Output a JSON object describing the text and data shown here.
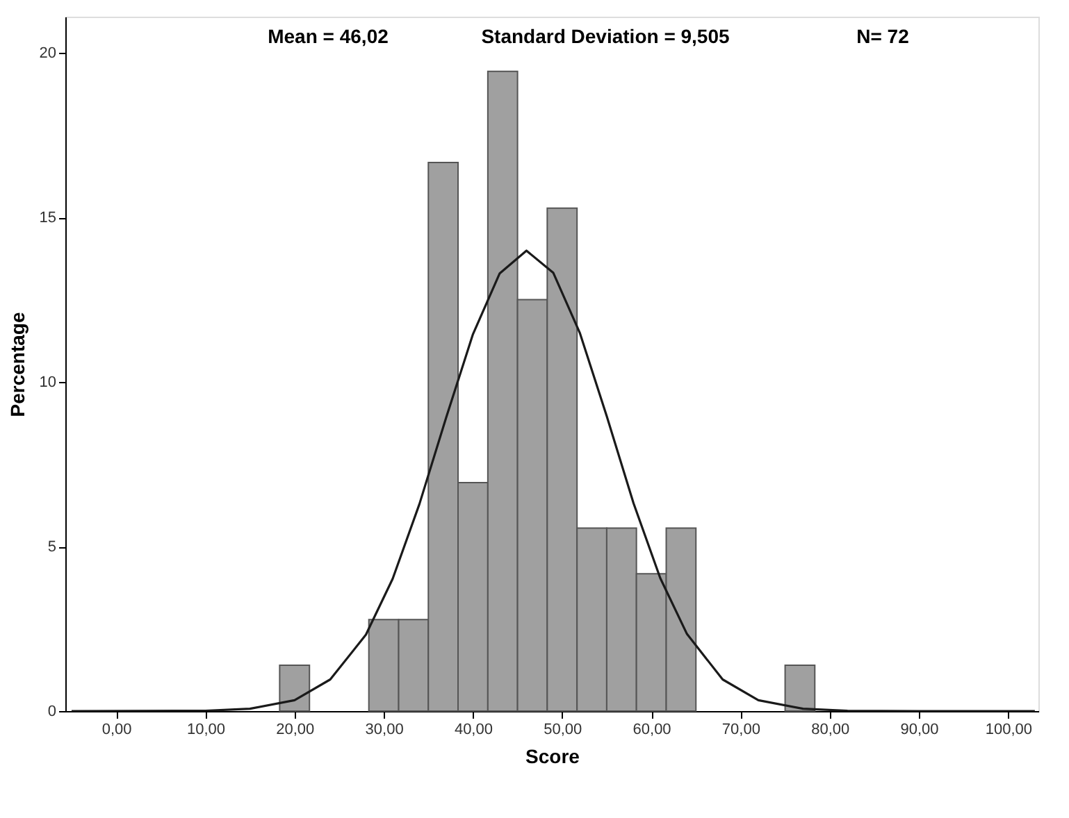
{
  "chart_data": {
    "type": "histogram",
    "xlabel": "Score",
    "ylabel": "Percentage",
    "annotations": [
      "Mean = 46,02",
      "Standard Deviation = 9,505",
      "N= 72"
    ],
    "bins": [
      18.33,
      21.67,
      25,
      28.33,
      31.67,
      35,
      38.33,
      41.67,
      45,
      48.33,
      51.67,
      55,
      58.33,
      61.67,
      65,
      68.33,
      71.67,
      75,
      78.33
    ],
    "values": [
      1.39,
      0,
      0,
      2.78,
      2.78,
      16.67,
      6.94,
      19.44,
      12.5,
      15.28,
      5.56,
      5.56,
      4.17,
      5.56,
      0,
      0,
      0,
      1.39
    ],
    "color": "#a0a0a0",
    "series": [
      {
        "type": "line",
        "color": "#1a1a1a",
        "x": [
          -5,
          10,
          15,
          20,
          24,
          28,
          31,
          34,
          37,
          40,
          43,
          46,
          49,
          52,
          55,
          58,
          61,
          64,
          68,
          72,
          77,
          82,
          90,
          103
        ],
        "values": [
          0,
          0.01,
          0.07,
          0.33,
          0.96,
          2.32,
          4.02,
          6.29,
          8.92,
          11.45,
          13.3,
          13.99,
          13.32,
          11.48,
          8.96,
          6.32,
          4.04,
          2.34,
          0.96,
          0.33,
          0.07,
          0.01,
          0,
          0
        ]
      }
    ],
    "xlim": [
      -5.7,
      103.4
    ],
    "ylim": [
      0,
      21.1
    ],
    "xticks": [
      {
        "value": 0,
        "label": "0,00"
      },
      {
        "value": 10,
        "label": "10,00"
      },
      {
        "value": 20,
        "label": "20,00"
      },
      {
        "value": 30,
        "label": "30,00"
      },
      {
        "value": 40,
        "label": "40,00"
      },
      {
        "value": 50,
        "label": "50,00"
      },
      {
        "value": 60,
        "label": "60,00"
      },
      {
        "value": 70,
        "label": "70,00"
      },
      {
        "value": 80,
        "label": "80,00"
      },
      {
        "value": 90,
        "label": "90,00"
      },
      {
        "value": 100,
        "label": "100,00"
      }
    ],
    "yticks": [
      0,
      5,
      10,
      15,
      20
    ],
    "grid": false
  }
}
